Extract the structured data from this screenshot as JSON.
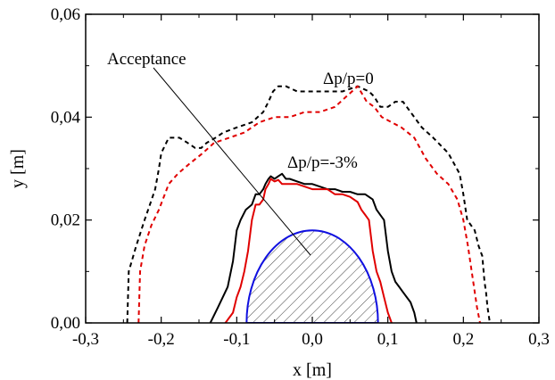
{
  "chart_data": {
    "type": "line",
    "xlabel": "x [m]",
    "ylabel": "y [m]",
    "xlim": [
      -0.3,
      0.3
    ],
    "ylim": [
      0.0,
      0.06
    ],
    "x_ticks": [
      -0.3,
      -0.2,
      -0.1,
      0.0,
      0.1,
      0.2,
      0.3
    ],
    "x_tick_labels": [
      "-0,3",
      "-0,2",
      "-0,1",
      "0,0",
      "0,1",
      "0,2",
      "0,3"
    ],
    "y_ticks": [
      0.0,
      0.02,
      0.04,
      0.06
    ],
    "y_tick_labels": [
      "0,00",
      "0,02",
      "0,04",
      "0,06"
    ],
    "grid": false,
    "annotations": {
      "acceptance": "Acceptance",
      "dp0": "Δp/p=0",
      "dp3": "Δp/p=-3%"
    },
    "series": [
      {
        "color": "#000000",
        "style": "dashed",
        "x": [
          -0.245,
          -0.243,
          -0.233,
          -0.222,
          -0.215,
          -0.208,
          -0.203,
          -0.2,
          -0.19,
          -0.176,
          -0.165,
          -0.155,
          -0.147,
          -0.14,
          -0.128,
          -0.118,
          -0.1,
          -0.08,
          -0.065,
          -0.058,
          -0.052,
          -0.045,
          -0.035,
          -0.02,
          0.0,
          0.02,
          0.04,
          0.06,
          0.075,
          0.082,
          0.09,
          0.1,
          0.11,
          0.12,
          0.13,
          0.145,
          0.16,
          0.18,
          0.195,
          0.2,
          0.205,
          0.215,
          0.22,
          0.225,
          0.228,
          0.23,
          0.232,
          0.235
        ],
        "y": [
          0.0,
          0.01,
          0.015,
          0.02,
          0.023,
          0.026,
          0.03,
          0.033,
          0.036,
          0.036,
          0.035,
          0.034,
          0.034,
          0.035,
          0.036,
          0.037,
          0.038,
          0.039,
          0.041,
          0.043,
          0.045,
          0.046,
          0.046,
          0.045,
          0.045,
          0.045,
          0.045,
          0.046,
          0.045,
          0.044,
          0.042,
          0.042,
          0.043,
          0.043,
          0.041,
          0.038,
          0.036,
          0.033,
          0.029,
          0.025,
          0.02,
          0.018,
          0.015,
          0.013,
          0.008,
          0.006,
          0.003,
          0.0
        ]
      },
      {
        "color": "#e00000",
        "style": "dashed",
        "x": [
          -0.23,
          -0.228,
          -0.222,
          -0.213,
          -0.203,
          -0.19,
          -0.178,
          -0.162,
          -0.145,
          -0.13,
          -0.11,
          -0.09,
          -0.07,
          -0.05,
          -0.03,
          -0.01,
          0.01,
          0.03,
          0.045,
          0.06,
          0.072,
          0.082,
          0.092,
          0.105,
          0.118,
          0.135,
          0.15,
          0.165,
          0.18,
          0.192,
          0.2,
          0.206,
          0.21,
          0.214,
          0.218,
          0.222
        ],
        "y": [
          0.0,
          0.01,
          0.015,
          0.019,
          0.022,
          0.027,
          0.029,
          0.031,
          0.033,
          0.035,
          0.036,
          0.037,
          0.039,
          0.04,
          0.04,
          0.041,
          0.041,
          0.042,
          0.044,
          0.046,
          0.043,
          0.042,
          0.04,
          0.039,
          0.038,
          0.036,
          0.032,
          0.029,
          0.027,
          0.024,
          0.02,
          0.015,
          0.011,
          0.007,
          0.003,
          0.0
        ]
      },
      {
        "color": "#000000",
        "style": "solid",
        "x": [
          -0.135,
          -0.125,
          -0.112,
          -0.105,
          -0.1,
          -0.095,
          -0.088,
          -0.08,
          -0.075,
          -0.07,
          -0.065,
          -0.062,
          -0.058,
          -0.055,
          -0.05,
          -0.045,
          -0.04,
          -0.035,
          -0.03,
          -0.02,
          -0.01,
          0.0,
          0.01,
          0.02,
          0.03,
          0.04,
          0.05,
          0.06,
          0.07,
          0.08,
          0.085,
          0.09,
          0.095,
          0.1,
          0.105,
          0.11,
          0.115,
          0.12,
          0.13,
          0.135,
          0.138
        ],
        "y": [
          0.0,
          0.003,
          0.007,
          0.012,
          0.018,
          0.02,
          0.022,
          0.023,
          0.025,
          0.025,
          0.026,
          0.027,
          0.028,
          0.0285,
          0.028,
          0.0285,
          0.029,
          0.028,
          0.028,
          0.0275,
          0.027,
          0.027,
          0.0265,
          0.026,
          0.026,
          0.0255,
          0.0255,
          0.025,
          0.025,
          0.024,
          0.022,
          0.021,
          0.02,
          0.014,
          0.01,
          0.008,
          0.007,
          0.006,
          0.004,
          0.002,
          0.0
        ]
      },
      {
        "color": "#e00000",
        "style": "solid",
        "x": [
          -0.115,
          -0.105,
          -0.1,
          -0.095,
          -0.09,
          -0.085,
          -0.08,
          -0.075,
          -0.07,
          -0.065,
          -0.062,
          -0.058,
          -0.055,
          -0.05,
          -0.045,
          -0.04,
          -0.03,
          -0.02,
          -0.01,
          0.0,
          0.01,
          0.02,
          0.03,
          0.04,
          0.05,
          0.06,
          0.065,
          0.07,
          0.075,
          0.08,
          0.085,
          0.09,
          0.095,
          0.1,
          0.105
        ],
        "y": [
          0.0,
          0.002,
          0.005,
          0.007,
          0.01,
          0.014,
          0.02,
          0.023,
          0.023,
          0.024,
          0.026,
          0.027,
          0.028,
          0.0275,
          0.0278,
          0.027,
          0.027,
          0.027,
          0.0265,
          0.026,
          0.026,
          0.026,
          0.025,
          0.025,
          0.0245,
          0.0235,
          0.022,
          0.021,
          0.02,
          0.014,
          0.01,
          0.008,
          0.005,
          0.002,
          0.0
        ]
      },
      {
        "color": "#1010e0",
        "style": "solid",
        "fill": "hatched",
        "shape": "half-ellipse",
        "cx": 0.0,
        "rx": 0.087,
        "ry": 0.018
      }
    ]
  }
}
